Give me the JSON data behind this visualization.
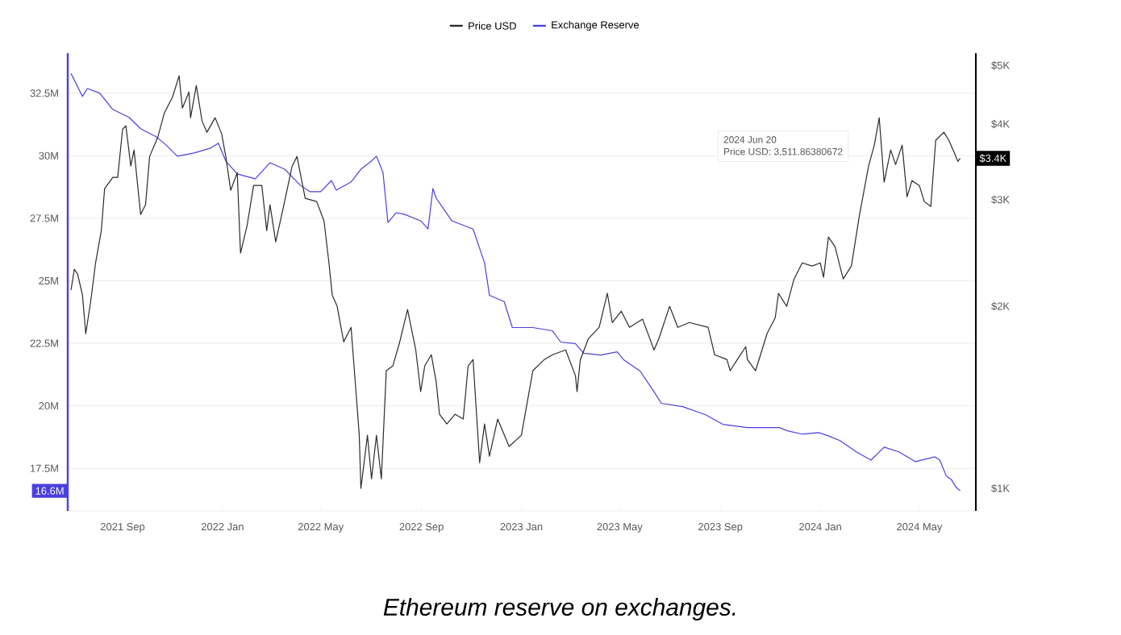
{
  "chart_data": {
    "type": "line",
    "xlim": [
      "2021-06-26",
      "2024-07-09"
    ],
    "xticks": [
      {
        "value": "2021-09-01",
        "label": "2021 Sep"
      },
      {
        "value": "2022-01-01",
        "label": "2022 Jan"
      },
      {
        "value": "2022-05-01",
        "label": "2022 May"
      },
      {
        "value": "2022-09-01",
        "label": "2022 Sep"
      },
      {
        "value": "2023-01-01",
        "label": "2023 Jan"
      },
      {
        "value": "2023-05-01",
        "label": "2023 May"
      },
      {
        "value": "2023-09-01",
        "label": "2023 Sep"
      },
      {
        "value": "2024-01-01",
        "label": "2024 Jan"
      },
      {
        "value": "2024-05-01",
        "label": "2024 May"
      }
    ],
    "ylim": [
      15.8,
      34.1
    ],
    "yticks": [
      {
        "value": 17.5,
        "label": "17.5M"
      },
      {
        "value": 20,
        "label": "20M"
      },
      {
        "value": 22.5,
        "label": "22.5M"
      },
      {
        "value": 25,
        "label": "25M"
      },
      {
        "value": 27.5,
        "label": "27.5M"
      },
      {
        "value": 30,
        "label": "30M"
      },
      {
        "value": 32.5,
        "label": "32.5M"
      }
    ],
    "y2lim": [
      918,
      5240
    ],
    "y2ticks": [
      {
        "value": 1000,
        "label": "$1K"
      },
      {
        "value": 2000,
        "label": "$2K"
      },
      {
        "value": 3000,
        "label": "$3K"
      },
      {
        "value": 4000,
        "label": "$4K"
      },
      {
        "value": 5000,
        "label": "$5K"
      }
    ],
    "log": "y2",
    "grid": "y",
    "legend": "top",
    "annotations": [
      "Ethereum reserve on exchanges.",
      "2024 Jun 20",
      "Price USD: 3,511.86380672",
      "16.6M",
      "$3.4K"
    ],
    "series": [
      {
        "name": "Price USD",
        "color": "#2b2b2b",
        "axis": "y2",
        "x": [
          "2021-06-30",
          "2021-07-04",
          "2021-07-08",
          "2021-07-14",
          "2021-07-18",
          "2021-07-24",
          "2021-07-30",
          "2021-08-06",
          "2021-08-10",
          "2021-08-20",
          "2021-08-26",
          "2021-09-01",
          "2021-09-05",
          "2021-09-11",
          "2021-09-15",
          "2021-09-23",
          "2021-09-29",
          "2021-10-04",
          "2021-10-14",
          "2021-10-22",
          "2021-11-01",
          "2021-11-09",
          "2021-11-13",
          "2021-11-21",
          "2021-11-23",
          "2021-11-30",
          "2021-12-07",
          "2021-12-13",
          "2021-12-23",
          "2021-12-31",
          "2022-01-05",
          "2022-01-11",
          "2022-01-19",
          "2022-01-23",
          "2022-01-31",
          "2022-02-08",
          "2022-02-18",
          "2022-02-24",
          "2022-02-28",
          "2022-03-07",
          "2022-03-17",
          "2022-03-27",
          "2022-04-02",
          "2022-04-12",
          "2022-04-26",
          "2022-05-05",
          "2022-05-11",
          "2022-05-15",
          "2022-05-21",
          "2022-05-29",
          "2022-06-07",
          "2022-06-13",
          "2022-06-17",
          "2022-06-19",
          "2022-06-27",
          "2022-07-02",
          "2022-07-08",
          "2022-07-14",
          "2022-07-20",
          "2022-07-28",
          "2022-08-05",
          "2022-08-15",
          "2022-08-25",
          "2022-08-31",
          "2022-09-05",
          "2022-09-13",
          "2022-09-19",
          "2022-09-23",
          "2022-10-02",
          "2022-10-12",
          "2022-10-22",
          "2022-10-28",
          "2022-11-03",
          "2022-11-11",
          "2022-11-17",
          "2022-11-23",
          "2022-12-03",
          "2022-12-17",
          "2023-01-01",
          "2023-01-15",
          "2023-01-29",
          "2023-02-08",
          "2023-02-24",
          "2023-03-08",
          "2023-03-10",
          "2023-03-14",
          "2023-03-24",
          "2023-04-06",
          "2023-04-16",
          "2023-04-22",
          "2023-05-03",
          "2023-05-13",
          "2023-05-29",
          "2023-06-12",
          "2023-06-18",
          "2023-07-01",
          "2023-07-11",
          "2023-07-25",
          "2023-08-17",
          "2023-08-25",
          "2023-09-09",
          "2023-09-13",
          "2023-09-23",
          "2023-10-02",
          "2023-10-04",
          "2023-10-14",
          "2023-10-28",
          "2023-11-07",
          "2023-11-11",
          "2023-11-21",
          "2023-11-30",
          "2023-12-10",
          "2023-12-22",
          "2024-01-01",
          "2024-01-05",
          "2024-01-11",
          "2024-01-19",
          "2024-01-29",
          "2024-02-08",
          "2024-02-18",
          "2024-02-29",
          "2024-03-07",
          "2024-03-13",
          "2024-03-19",
          "2024-03-27",
          "2024-04-02",
          "2024-04-10",
          "2024-04-16",
          "2024-04-22",
          "2024-05-01",
          "2024-05-07",
          "2024-05-15",
          "2024-05-21",
          "2024-05-31",
          "2024-06-06",
          "2024-06-13",
          "2024-06-17",
          "2024-06-20"
        ],
        "values": [
          2127,
          2302,
          2261,
          2087,
          1802,
          2036,
          2359,
          2668,
          3128,
          3266,
          3266,
          3925,
          3975,
          3409,
          3625,
          2836,
          2943,
          3537,
          3807,
          4173,
          4437,
          4806,
          4250,
          4520,
          4098,
          4632,
          4048,
          3878,
          4098,
          3855,
          3537,
          3109,
          3327,
          2448,
          2718,
          3167,
          3167,
          2668,
          2943,
          2556,
          2943,
          3409,
          3537,
          3016,
          2979,
          2767,
          2359,
          2087,
          2000,
          1747,
          1846,
          1445,
          1224,
          1000,
          1224,
          1037,
          1224,
          1037,
          1565,
          1594,
          1737,
          1975,
          1694,
          1445,
          1594,
          1663,
          1499,
          1326,
          1278,
          1326,
          1302,
          1594,
          1633,
          1103,
          1278,
          1130,
          1302,
          1173,
          1224,
          1565,
          1633,
          1663,
          1694,
          1536,
          1445,
          1633,
          1769,
          1846,
          2101,
          1880,
          1963,
          1846,
          1904,
          1694,
          1769,
          2000,
          1846,
          1880,
          1846,
          1663,
          1633,
          1565,
          1643,
          1715,
          1633,
          1565,
          1802,
          1915,
          2101,
          2000,
          2219,
          2359,
          2331,
          2359,
          2233,
          2603,
          2509,
          2219,
          2331,
          2836,
          3409,
          3693,
          4098,
          3206,
          3625,
          3430,
          3693,
          3034,
          3226,
          3167,
          2979,
          2924,
          3762,
          3878,
          3762,
          3580,
          3472,
          3512
        ]
      },
      {
        "name": "Exchange Reserve",
        "color": "#4c3fe0",
        "x": [
          "2021-06-30",
          "2021-07-14",
          "2021-07-20",
          "2021-08-04",
          "2021-08-20",
          "2021-09-09",
          "2021-09-23",
          "2021-10-12",
          "2021-10-24",
          "2021-11-07",
          "2021-11-27",
          "2021-12-17",
          "2021-12-27",
          "2022-01-05",
          "2022-01-19",
          "2022-02-10",
          "2022-02-28",
          "2022-03-18",
          "2022-04-06",
          "2022-04-18",
          "2022-05-01",
          "2022-05-14",
          "2022-05-20",
          "2022-06-07",
          "2022-06-19",
          "2022-07-02",
          "2022-07-08",
          "2022-07-16",
          "2022-07-22",
          "2022-08-01",
          "2022-08-11",
          "2022-08-31",
          "2022-09-09",
          "2022-09-15",
          "2022-09-19",
          "2022-10-08",
          "2022-11-03",
          "2022-11-17",
          "2022-11-23",
          "2022-12-11",
          "2022-12-21",
          "2023-01-15",
          "2023-02-08",
          "2023-02-18",
          "2023-03-08",
          "2023-03-18",
          "2023-04-08",
          "2023-04-28",
          "2023-05-06",
          "2023-05-26",
          "2023-06-11",
          "2023-06-21",
          "2023-07-17",
          "2023-08-14",
          "2023-09-04",
          "2023-10-04",
          "2023-11-12",
          "2023-11-22",
          "2023-12-10",
          "2023-12-30",
          "2024-01-11",
          "2024-01-25",
          "2024-02-14",
          "2024-03-03",
          "2024-03-19",
          "2024-04-06",
          "2024-04-26",
          "2024-05-20",
          "2024-05-26",
          "2024-06-03",
          "2024-06-09",
          "2024-06-15",
          "2024-06-20"
        ],
        "values": [
          33.29,
          32.37,
          32.69,
          32.5,
          31.85,
          31.53,
          31.08,
          30.76,
          30.43,
          29.98,
          30.11,
          30.3,
          30.5,
          29.79,
          29.27,
          29.08,
          29.72,
          29.46,
          28.82,
          28.56,
          28.56,
          29.01,
          28.62,
          28.95,
          29.46,
          29.79,
          29.98,
          29.33,
          27.33,
          27.72,
          27.66,
          27.4,
          27.07,
          28.69,
          28.3,
          27.4,
          27.07,
          25.72,
          24.42,
          24.17,
          23.13,
          23.13,
          23.0,
          22.55,
          22.49,
          22.1,
          22.03,
          22.16,
          21.84,
          21.39,
          20.61,
          20.1,
          19.97,
          19.64,
          19.26,
          19.13,
          19.13,
          19.0,
          18.87,
          18.93,
          18.8,
          18.61,
          18.16,
          17.83,
          18.35,
          18.16,
          17.77,
          17.96,
          17.83,
          17.19,
          17.06,
          16.74,
          16.6
        ]
      }
    ]
  }
}
